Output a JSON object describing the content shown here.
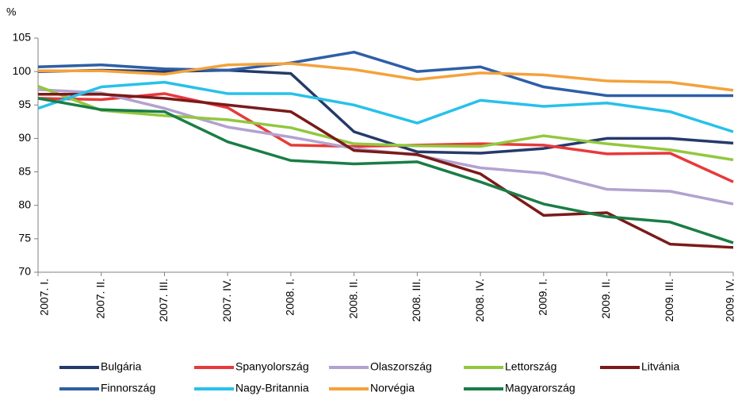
{
  "chart_data": {
    "type": "line",
    "y_label": "%",
    "categories": [
      "2007. I.",
      "2007. II.",
      "2007. III.",
      "2007. IV.",
      "2008. I.",
      "2008. II.",
      "2008. III.",
      "2008. IV.",
      "2009. I.",
      "2009. II.",
      "2009. III.",
      "2009. IV."
    ],
    "ylim": [
      70,
      105
    ],
    "yticks": [
      70,
      75,
      80,
      85,
      90,
      95,
      100,
      105
    ],
    "grid": false,
    "legend": "bottom",
    "series": [
      {
        "name": "Bulgária",
        "color": "#253a6a",
        "values": [
          100,
          100.2,
          100,
          100.2,
          99.7,
          91,
          88,
          87.8,
          88.5,
          90,
          90,
          89.3
        ]
      },
      {
        "name": "Spanyolország",
        "color": "#e8393a",
        "values": [
          96,
          95.8,
          96.7,
          94.6,
          89,
          88.8,
          89,
          89.2,
          89,
          87.7,
          87.8,
          83.5
        ]
      },
      {
        "name": "Olaszország",
        "color": "#b3a2cf",
        "values": [
          97.3,
          96.8,
          94.5,
          91.7,
          90.2,
          88.5,
          87.5,
          85.6,
          84.8,
          82.4,
          82.1,
          80.2
        ]
      },
      {
        "name": "Lettország",
        "color": "#92c83e",
        "values": [
          97.8,
          94.2,
          93.4,
          92.8,
          91.6,
          89.2,
          88.9,
          88.8,
          90.4,
          89.2,
          88.3,
          86.8
        ]
      },
      {
        "name": "Litvánia",
        "color": "#7b1a1a",
        "values": [
          96.6,
          96.6,
          96,
          95,
          94,
          88.2,
          87.6,
          84.7,
          78.5,
          78.9,
          74.2,
          73.7
        ]
      },
      {
        "name": "Finnország",
        "color": "#2e5fa6",
        "values": [
          100.7,
          101,
          100.4,
          100.2,
          101.3,
          102.9,
          100,
          100.7,
          97.7,
          96.4,
          96.4,
          96.4
        ]
      },
      {
        "name": "Nagy-Britannia",
        "color": "#27c1ea",
        "values": [
          94.5,
          97.7,
          98.4,
          96.7,
          96.7,
          95,
          92.3,
          95.7,
          94.8,
          95.3,
          94,
          91
        ]
      },
      {
        "name": "Norvégia",
        "color": "#f4a23c",
        "values": [
          100.1,
          100.1,
          99.6,
          101,
          101.2,
          100.3,
          98.8,
          99.8,
          99.5,
          98.6,
          98.4,
          97.2
        ]
      },
      {
        "name": "Magyarország",
        "color": "#1a7d46",
        "values": [
          96,
          94.3,
          94,
          89.5,
          86.7,
          86.2,
          86.5,
          83.5,
          80.2,
          78.3,
          77.5,
          74.4
        ]
      }
    ]
  }
}
